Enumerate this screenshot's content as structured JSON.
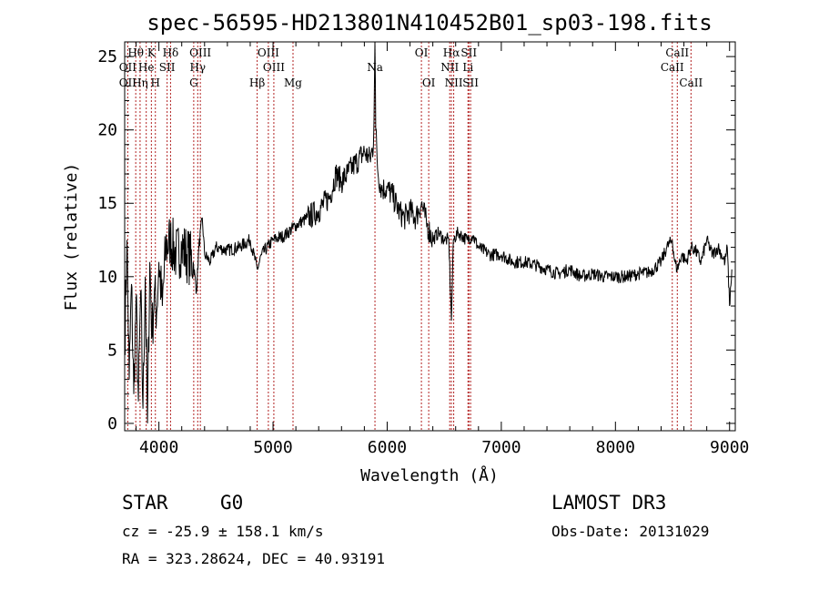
{
  "chart_data": {
    "type": "line",
    "title": "spec-56595-HD213801N410452B01_sp03-198.fits",
    "xlabel": "Wavelength (Å)",
    "ylabel": "Flux (relative)",
    "xlim": [
      3700,
      9050
    ],
    "ylim": [
      -0.5,
      26
    ],
    "xticks": [
      4000,
      5000,
      6000,
      7000,
      8000,
      9000
    ],
    "yticks": [
      0,
      5,
      10,
      15,
      20,
      25
    ],
    "series": [
      {
        "name": "flux",
        "x": [
          3700,
          3720,
          3740,
          3760,
          3780,
          3800,
          3820,
          3840,
          3860,
          3880,
          3900,
          3920,
          3940,
          3960,
          3980,
          4000,
          4030,
          4060,
          4100,
          4150,
          4200,
          4250,
          4300,
          4330,
          4350,
          4380,
          4400,
          4450,
          4500,
          4600,
          4700,
          4800,
          4861,
          4900,
          5000,
          5100,
          5200,
          5300,
          5400,
          5500,
          5550,
          5600,
          5650,
          5700,
          5750,
          5800,
          5850,
          5880,
          5893,
          5900,
          5920,
          5950,
          6000,
          6050,
          6100,
          6150,
          6200,
          6250,
          6300,
          6350,
          6400,
          6450,
          6500,
          6540,
          6563,
          6580,
          6620,
          6700,
          6750,
          6800,
          6900,
          7000,
          7100,
          7200,
          7300,
          7400,
          7500,
          7600,
          7700,
          7800,
          7900,
          8000,
          8100,
          8200,
          8300,
          8400,
          8450,
          8498,
          8520,
          8542,
          8580,
          8620,
          8662,
          8700,
          8750,
          8800,
          8850,
          8900,
          8930,
          8960,
          8980,
          9000,
          9020
        ],
        "y": [
          5.2,
          12.5,
          3.0,
          9.5,
          2.0,
          8.5,
          1.5,
          9.0,
          1.0,
          10.0,
          0.0,
          11.0,
          6.0,
          9.0,
          7.5,
          11.0,
          8.0,
          12.0,
          12.5,
          11.5,
          12.0,
          11.5,
          11.0,
          9.0,
          12.0,
          14.0,
          11.5,
          11.0,
          12.0,
          11.8,
          12.0,
          12.5,
          10.5,
          11.5,
          12.5,
          12.8,
          13.5,
          14.0,
          14.5,
          15.5,
          17.0,
          16.5,
          17.0,
          17.5,
          18.0,
          18.5,
          18.0,
          19.0,
          26.0,
          20.0,
          17.0,
          16.0,
          16.0,
          15.5,
          14.5,
          14.0,
          14.5,
          14.0,
          15.0,
          13.5,
          12.5,
          13.0,
          12.5,
          12.5,
          7.0,
          12.5,
          13.0,
          12.5,
          12.8,
          12.0,
          11.5,
          11.5,
          11.0,
          11.0,
          10.8,
          10.5,
          10.2,
          10.5,
          10.0,
          10.2,
          10.0,
          10.0,
          10.0,
          10.2,
          10.3,
          11.0,
          12.0,
          12.5,
          11.0,
          10.5,
          11.5,
          11.0,
          12.0,
          11.8,
          11.0,
          12.5,
          11.5,
          12.0,
          11.5,
          11.0,
          12.0,
          8.0,
          10.5
        ]
      }
    ],
    "annotation_lines": [
      {
        "label": "Hθ",
        "wave": 3797,
        "row": 1
      },
      {
        "label": "OII",
        "wave": 3727,
        "row": 2
      },
      {
        "label": "OII",
        "wave": 3727,
        "row": 3
      },
      {
        "label": "He",
        "wave": 3889,
        "row": 2
      },
      {
        "label": "Hη",
        "wave": 3835,
        "row": 3
      },
      {
        "label": "K",
        "wave": 3934,
        "row": 1
      },
      {
        "label": "SII",
        "wave": 4072,
        "row": 2
      },
      {
        "label": "H",
        "wave": 3969,
        "row": 3
      },
      {
        "label": "Hδ",
        "wave": 4102,
        "row": 1
      },
      {
        "label": "OIII",
        "wave": 4363,
        "row": 1
      },
      {
        "label": "Hγ",
        "wave": 4340,
        "row": 2
      },
      {
        "label": "G",
        "wave": 4305,
        "row": 3
      },
      {
        "label": "OIII",
        "wave": 4959,
        "row": 1
      },
      {
        "label": "OIII",
        "wave": 5007,
        "row": 2
      },
      {
        "label": "Hβ",
        "wave": 4861,
        "row": 3
      },
      {
        "label": "Mg",
        "wave": 5175,
        "row": 3
      },
      {
        "label": "Na",
        "wave": 5893,
        "row": 2
      },
      {
        "label": "OI",
        "wave": 6300,
        "row": 1
      },
      {
        "label": "OI",
        "wave": 6364,
        "row": 3
      },
      {
        "label": "Hα",
        "wave": 6563,
        "row": 1
      },
      {
        "label": "NII",
        "wave": 6548,
        "row": 2
      },
      {
        "label": "NII",
        "wave": 6583,
        "row": 3
      },
      {
        "label": "SII",
        "wave": 6716,
        "row": 1
      },
      {
        "label": "Li",
        "wave": 6708,
        "row": 2
      },
      {
        "label": "SII",
        "wave": 6731,
        "row": 3
      },
      {
        "label": "CaII",
        "wave": 8542,
        "row": 1
      },
      {
        "label": "CaII",
        "wave": 8498,
        "row": 2
      },
      {
        "label": "CaII",
        "wave": 8662,
        "row": 3
      }
    ]
  },
  "info": {
    "object_class": "STAR",
    "subclass": "G0",
    "survey": "LAMOST DR3",
    "cz": "cz = -25.9 ± 158.1 km/s",
    "obs_date": "Obs-Date: 20131029",
    "coords": "RA = 323.28624, DEC =  40.93191"
  },
  "colors": {
    "spectrum": "#000000",
    "line_markers": "#b22222",
    "axes": "#000000"
  }
}
